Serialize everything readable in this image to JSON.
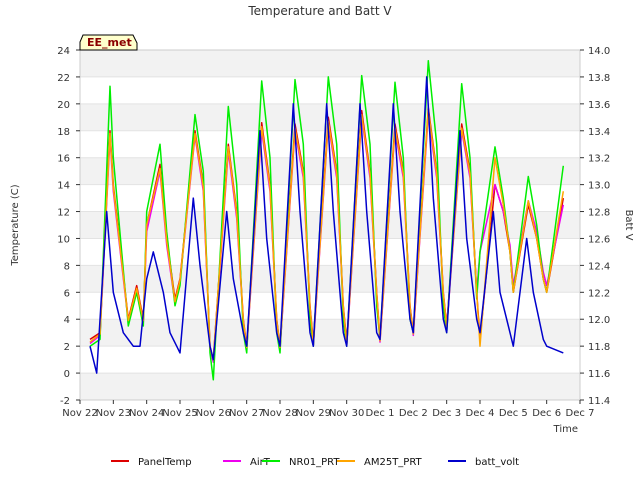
{
  "chart_data": {
    "type": "line",
    "title": "Temperature and Batt V",
    "xlabel": "Time",
    "ylabel": "Temperature (C)",
    "y2label": "Batt V",
    "badge": "EE_met",
    "xlim": [
      0,
      15
    ],
    "ylim": [
      -2,
      24
    ],
    "y2lim": [
      11.4,
      14.0
    ],
    "x_ticks": [
      0,
      1,
      2,
      3,
      4,
      5,
      6,
      7,
      8,
      9,
      10,
      11,
      12,
      13,
      14,
      15
    ],
    "x_tick_labels": [
      "Nov 22",
      "Nov 23",
      "Nov 24",
      "Nov 25",
      "Nov 26",
      "Nov 27",
      "Nov 28",
      "Nov 29",
      "Nov 30",
      "Dec 1",
      "Dec 2",
      "Dec 3",
      "Dec 4",
      "Dec 5",
      "Dec 6",
      "Dec 7"
    ],
    "y_ticks": [
      -2,
      0,
      2,
      4,
      6,
      8,
      10,
      12,
      14,
      16,
      18,
      20,
      22,
      24
    ],
    "y_tick_labels": [
      "-2",
      "0",
      "2",
      "4",
      "6",
      "8",
      "10",
      "12",
      "14",
      "16",
      "18",
      "20",
      "22",
      "24"
    ],
    "y2_ticks": [
      11.4,
      11.6,
      11.8,
      12.0,
      12.2,
      12.4,
      12.6,
      12.8,
      13.0,
      13.2,
      13.4,
      13.6,
      13.8,
      14.0
    ],
    "y2_tick_labels": [
      "11.4",
      "11.6",
      "11.8",
      "12.0",
      "12.2",
      "12.4",
      "12.6",
      "12.8",
      "13.0",
      "13.2",
      "13.4",
      "13.6",
      "13.8",
      "14.0"
    ],
    "grid": "horizontal bands",
    "legend_position": "bottom",
    "x_unit_note": "x values are days after Nov 22",
    "series": [
      {
        "name": "PanelTemp",
        "color": "#dd0000",
        "axis": "left",
        "x": [
          0.3,
          0.6,
          0.9,
          1.0,
          1.45,
          1.7,
          1.9,
          2.0,
          2.4,
          2.6,
          2.85,
          3.0,
          3.45,
          3.7,
          3.9,
          4.0,
          4.45,
          4.7,
          4.9,
          5.0,
          5.45,
          5.7,
          5.9,
          6.0,
          6.45,
          6.7,
          6.9,
          7.0,
          7.45,
          7.7,
          7.9,
          8.0,
          8.45,
          8.7,
          8.9,
          9.0,
          9.45,
          9.7,
          9.9,
          10.0,
          10.45,
          10.7,
          10.9,
          11.0,
          11.45,
          11.7,
          11.9,
          12.0,
          12.45,
          12.7,
          12.9,
          13.0,
          13.45,
          13.7,
          13.9,
          14.0,
          14.5
        ],
        "y": [
          2.5,
          3.0,
          18.0,
          14.0,
          4.0,
          6.5,
          4.0,
          11.0,
          15.5,
          10.0,
          5.5,
          7.0,
          18.0,
          14.0,
          2.0,
          1.0,
          17.0,
          12.0,
          4.0,
          2.0,
          18.6,
          14.0,
          4.0,
          2.0,
          18.5,
          15.0,
          5.0,
          2.3,
          19.0,
          15.0,
          5.0,
          2.3,
          19.5,
          15.0,
          6.0,
          2.5,
          18.5,
          15.0,
          5.0,
          3.0,
          19.7,
          15.0,
          6.0,
          3.5,
          18.5,
          15.0,
          6.0,
          2.5,
          14.0,
          12.0,
          9.0,
          6.0,
          12.5,
          10.0,
          7.0,
          6.0,
          13.0
        ]
      },
      {
        "name": "AirT",
        "color": "#ee00ee",
        "axis": "left",
        "x": [
          0.3,
          0.6,
          0.9,
          1.0,
          1.45,
          1.7,
          1.9,
          2.0,
          2.4,
          2.6,
          2.85,
          3.0,
          3.45,
          3.7,
          3.9,
          4.0,
          4.45,
          4.7,
          4.9,
          5.0,
          5.45,
          5.7,
          5.9,
          6.0,
          6.45,
          6.7,
          6.9,
          7.0,
          7.45,
          7.7,
          7.9,
          8.0,
          8.45,
          8.7,
          8.9,
          9.0,
          9.45,
          9.7,
          9.9,
          10.0,
          10.45,
          10.7,
          10.9,
          11.0,
          11.45,
          11.7,
          11.9,
          12.0,
          12.45,
          12.7,
          12.9,
          13.0,
          13.45,
          13.7,
          13.9,
          14.0,
          14.5
        ],
        "y": [
          2.2,
          2.8,
          17.5,
          13.5,
          3.8,
          6.2,
          3.8,
          10.5,
          15.0,
          9.5,
          5.2,
          6.8,
          17.6,
          13.5,
          1.8,
          0.8,
          16.5,
          11.5,
          3.8,
          1.8,
          18.0,
          13.5,
          3.8,
          1.8,
          18.0,
          14.5,
          4.8,
          2.0,
          18.5,
          14.5,
          4.8,
          2.0,
          19.0,
          14.5,
          5.8,
          2.3,
          18.0,
          14.5,
          4.8,
          2.8,
          19.2,
          14.5,
          5.8,
          3.3,
          18.0,
          14.5,
          6.0,
          9.0,
          14.0,
          12.0,
          9.5,
          6.5,
          12.8,
          10.5,
          7.5,
          6.5,
          12.5
        ]
      },
      {
        "name": "NR01_PRT",
        "color": "#00ee00",
        "axis": "left",
        "x": [
          0.3,
          0.6,
          0.9,
          1.0,
          1.45,
          1.7,
          1.9,
          2.0,
          2.4,
          2.6,
          2.85,
          3.0,
          3.45,
          3.7,
          3.9,
          4.0,
          4.45,
          4.7,
          4.9,
          5.0,
          5.45,
          5.7,
          5.9,
          6.0,
          6.45,
          6.7,
          6.9,
          7.0,
          7.45,
          7.7,
          7.9,
          8.0,
          8.45,
          8.7,
          8.9,
          9.0,
          9.45,
          9.7,
          9.9,
          10.0,
          10.45,
          10.7,
          10.9,
          11.0,
          11.45,
          11.7,
          11.9,
          12.0,
          12.45,
          12.7,
          12.9,
          13.0,
          13.45,
          13.7,
          13.9,
          14.0,
          14.5
        ],
        "y": [
          2.0,
          2.5,
          21.3,
          16.0,
          3.5,
          6.0,
          3.5,
          12.0,
          17.0,
          10.5,
          5.0,
          6.5,
          19.2,
          15.0,
          1.5,
          -0.5,
          19.8,
          14.0,
          3.0,
          1.5,
          21.7,
          16.0,
          3.0,
          1.5,
          21.8,
          17.0,
          4.0,
          2.0,
          22.0,
          17.0,
          4.0,
          2.0,
          22.1,
          17.0,
          5.0,
          2.5,
          21.6,
          16.0,
          4.0,
          3.0,
          23.2,
          17.0,
          5.0,
          3.0,
          21.5,
          16.0,
          5.5,
          9.0,
          16.8,
          13.0,
          9.0,
          6.0,
          14.6,
          11.0,
          7.0,
          6.0,
          15.4
        ]
      },
      {
        "name": "AM25T_PRT",
        "color": "#ffa500",
        "axis": "left",
        "x": [
          0.3,
          0.6,
          0.9,
          1.0,
          1.45,
          1.7,
          1.9,
          2.0,
          2.4,
          2.6,
          2.85,
          3.0,
          3.45,
          3.7,
          3.9,
          4.0,
          4.45,
          4.7,
          4.9,
          5.0,
          5.45,
          5.7,
          5.9,
          6.0,
          6.45,
          6.7,
          6.9,
          7.0,
          7.45,
          7.7,
          7.9,
          8.0,
          8.45,
          8.7,
          8.9,
          9.0,
          9.45,
          9.7,
          9.9,
          10.0,
          10.45,
          10.7,
          10.9,
          11.0,
          11.45,
          11.7,
          11.9,
          12.0,
          12.45,
          12.7,
          12.9,
          13.0,
          13.45,
          13.7,
          13.9,
          14.0,
          14.5
        ],
        "y": [
          2.3,
          2.9,
          17.8,
          13.8,
          3.9,
          6.3,
          3.9,
          11.0,
          15.2,
          9.8,
          5.3,
          6.9,
          17.8,
          13.8,
          1.9,
          1.0,
          16.8,
          11.8,
          3.9,
          1.9,
          18.3,
          13.8,
          3.9,
          1.9,
          18.2,
          14.8,
          4.9,
          2.1,
          18.7,
          14.8,
          4.9,
          2.1,
          19.2,
          14.8,
          5.9,
          2.4,
          18.2,
          14.8,
          4.9,
          2.9,
          19.5,
          14.8,
          5.9,
          3.4,
          18.2,
          14.8,
          6.0,
          2.0,
          16.0,
          12.5,
          9.0,
          6.0,
          12.8,
          10.0,
          7.0,
          6.0,
          13.5
        ]
      },
      {
        "name": "batt_volt",
        "color": "#0000cc",
        "axis": "right",
        "x": [
          0.3,
          0.5,
          0.8,
          1.0,
          1.3,
          1.6,
          1.8,
          2.0,
          2.2,
          2.5,
          2.7,
          2.9,
          3.0,
          3.4,
          3.6,
          3.9,
          4.0,
          4.4,
          4.6,
          4.9,
          5.0,
          5.4,
          5.6,
          5.9,
          6.0,
          6.4,
          6.6,
          6.9,
          7.0,
          7.4,
          7.6,
          7.9,
          8.0,
          8.4,
          8.6,
          8.9,
          9.0,
          9.4,
          9.6,
          9.9,
          10.0,
          10.4,
          10.6,
          10.9,
          11.0,
          11.4,
          11.6,
          11.9,
          12.0,
          12.4,
          12.6,
          12.9,
          13.0,
          13.4,
          13.6,
          13.9,
          14.0,
          14.5
        ],
        "y": [
          11.8,
          11.6,
          12.8,
          12.2,
          11.9,
          11.8,
          11.8,
          12.3,
          12.5,
          12.2,
          11.9,
          11.8,
          11.75,
          12.9,
          12.4,
          11.8,
          11.7,
          12.8,
          12.3,
          11.9,
          11.8,
          13.4,
          12.6,
          11.9,
          11.8,
          13.6,
          12.8,
          11.9,
          11.8,
          13.6,
          12.8,
          11.9,
          11.8,
          13.6,
          12.8,
          11.9,
          11.85,
          13.6,
          12.8,
          12.0,
          11.9,
          13.8,
          12.9,
          12.0,
          11.9,
          13.4,
          12.6,
          12.0,
          11.9,
          12.8,
          12.2,
          11.9,
          11.8,
          12.6,
          12.2,
          11.85,
          11.8,
          11.75
        ]
      }
    ]
  }
}
